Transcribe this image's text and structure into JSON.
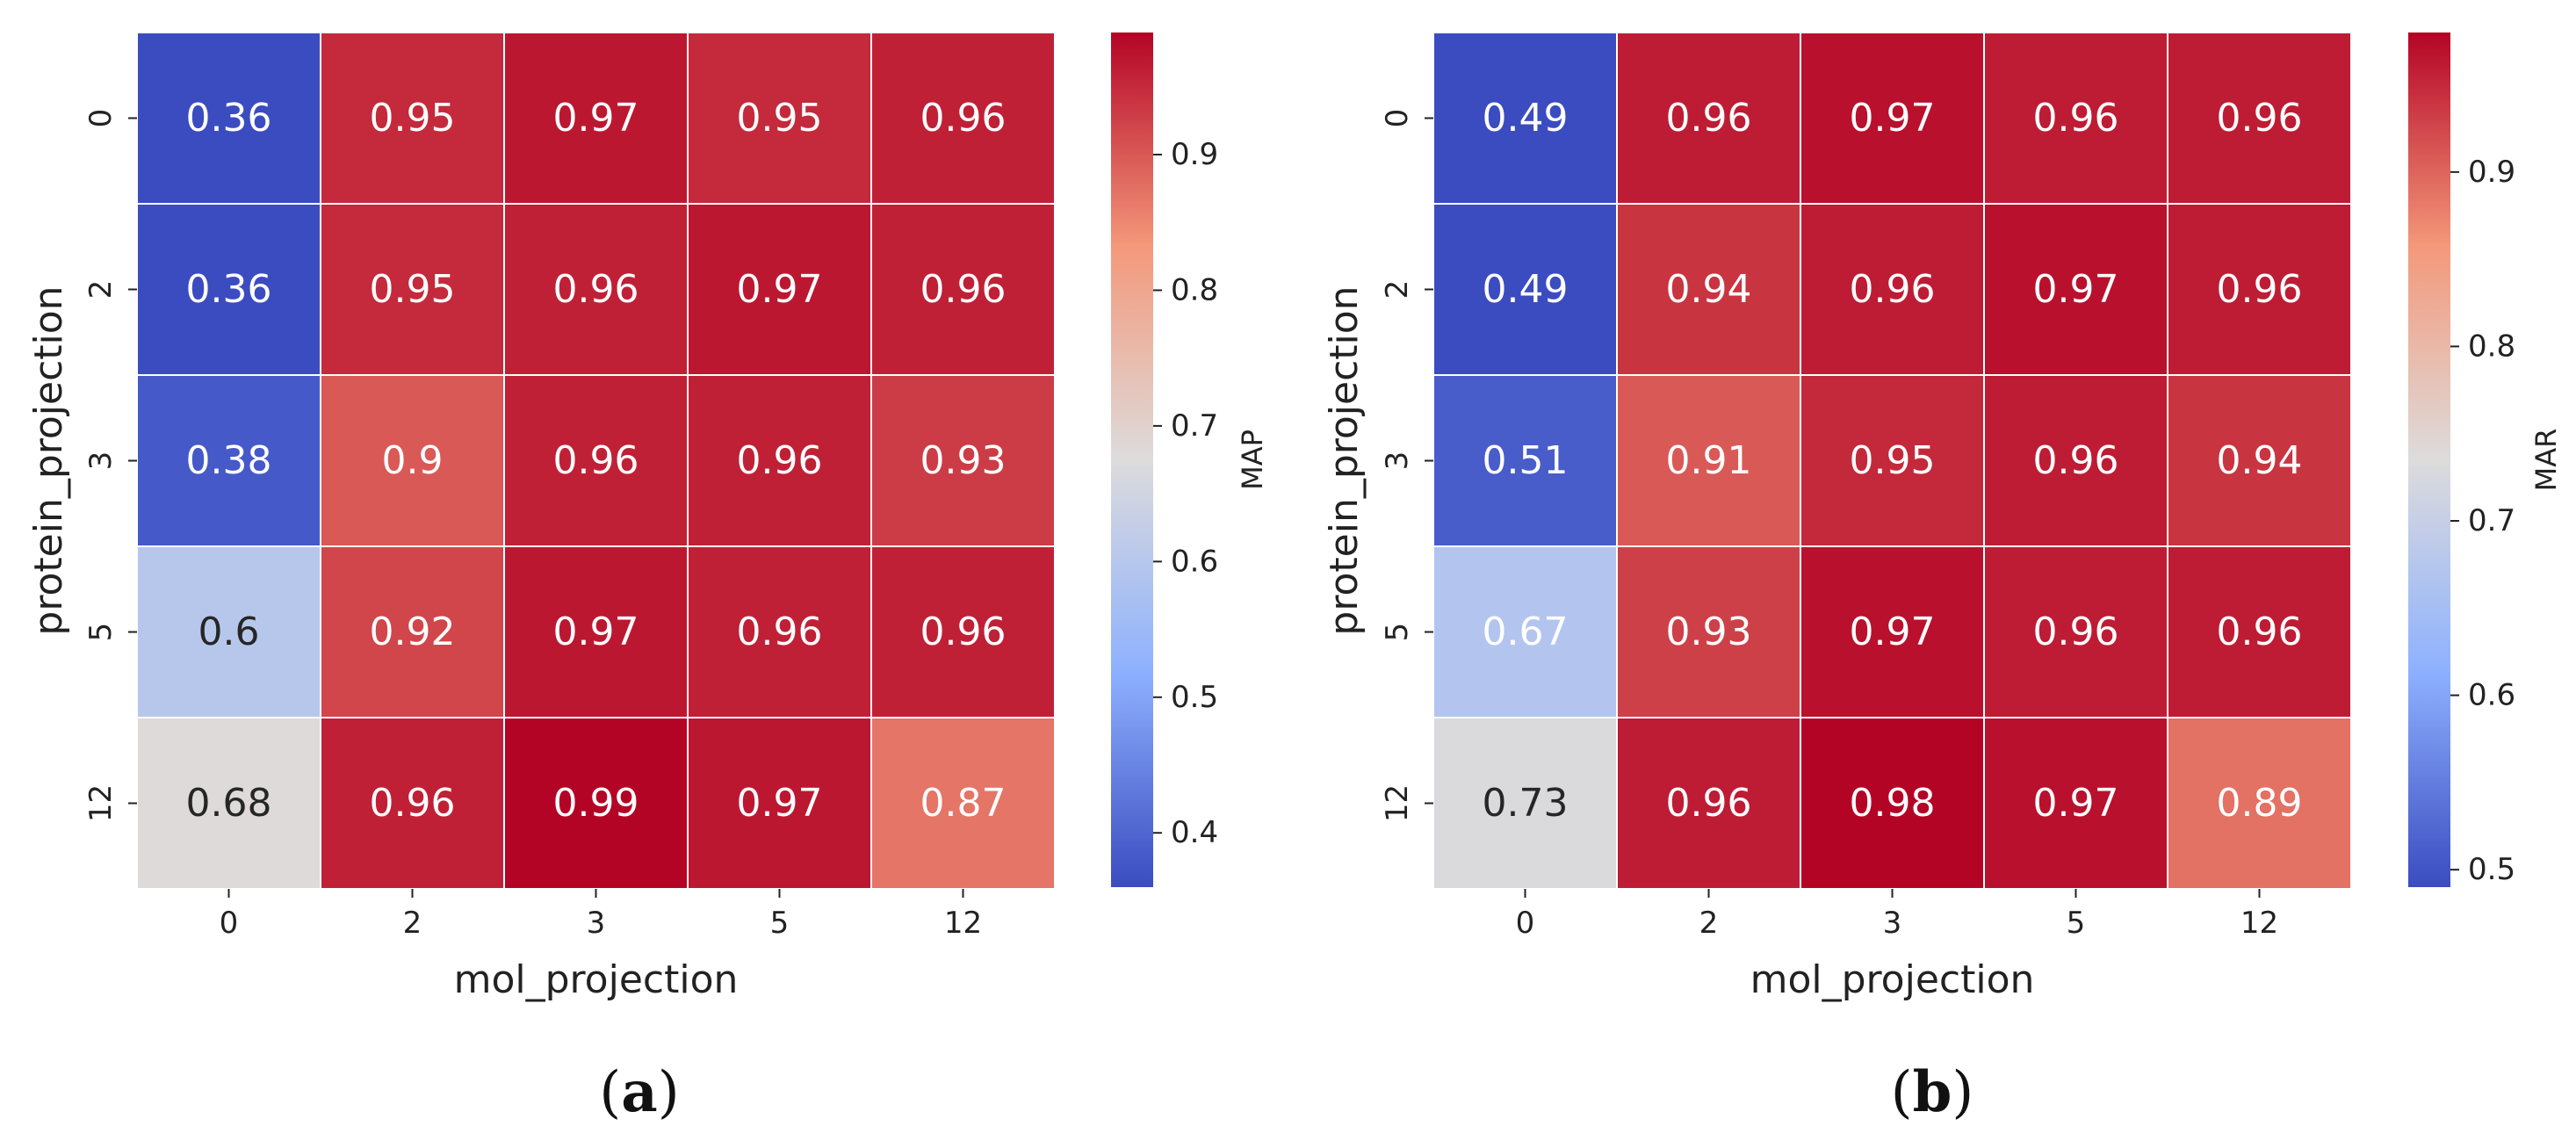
{
  "colors": {
    "cmap_low": "#3b4cc0",
    "cmap_mid": "#dddcdc",
    "cmap_high": "#b40426",
    "text_light": "#ffffff",
    "text_dark": "#262626"
  },
  "chart_data": [
    {
      "type": "heatmap",
      "panel_caption": "(a)",
      "caption_letter": "a",
      "xlabel": "mol_projection",
      "ylabel": "protein_projection",
      "x_categories": [
        "0",
        "2",
        "3",
        "5",
        "12"
      ],
      "y_categories": [
        "0",
        "2",
        "3",
        "5",
        "12"
      ],
      "values": [
        [
          0.36,
          0.95,
          0.97,
          0.95,
          0.96
        ],
        [
          0.36,
          0.95,
          0.96,
          0.97,
          0.96
        ],
        [
          0.38,
          0.9,
          0.96,
          0.96,
          0.93
        ],
        [
          0.6,
          0.92,
          0.97,
          0.96,
          0.96
        ],
        [
          0.68,
          0.96,
          0.99,
          0.97,
          0.87
        ]
      ],
      "colorbar": {
        "label": "MAP",
        "range": [
          0.36,
          0.99
        ],
        "ticks": [
          0.4,
          0.5,
          0.6,
          0.7,
          0.8,
          0.9
        ],
        "tick_labels": [
          "0.4",
          "0.5",
          "0.6",
          "0.7",
          "0.8",
          "0.9"
        ]
      }
    },
    {
      "type": "heatmap",
      "panel_caption": "(b)",
      "caption_letter": "b",
      "xlabel": "mol_projection",
      "ylabel": "protein_projection",
      "x_categories": [
        "0",
        "2",
        "3",
        "5",
        "12"
      ],
      "y_categories": [
        "0",
        "2",
        "3",
        "5",
        "12"
      ],
      "values": [
        [
          0.49,
          0.96,
          0.97,
          0.96,
          0.96
        ],
        [
          0.49,
          0.94,
          0.96,
          0.97,
          0.96
        ],
        [
          0.51,
          0.91,
          0.95,
          0.96,
          0.94
        ],
        [
          0.67,
          0.93,
          0.97,
          0.96,
          0.96
        ],
        [
          0.73,
          0.96,
          0.98,
          0.97,
          0.89
        ]
      ],
      "colorbar": {
        "label": "MAR",
        "range": [
          0.49,
          0.98
        ],
        "ticks": [
          0.5,
          0.6,
          0.7,
          0.8,
          0.9
        ],
        "tick_labels": [
          "0.5",
          "0.6",
          "0.7",
          "0.8",
          "0.9"
        ]
      }
    }
  ]
}
